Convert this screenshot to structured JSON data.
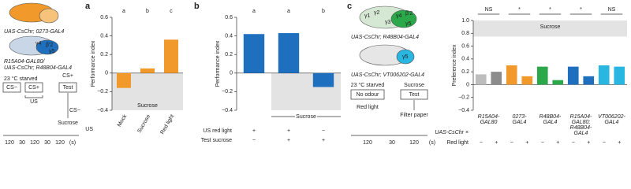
{
  "diagrams": {
    "a": {
      "genotype_1": "UAS-CsChr; 0273-GAL4",
      "genotype_2": [
        "R15A04-GAL80/",
        "UAS-CsChr; R48B04-GAL4"
      ],
      "glomeruli_2": [
        "γ4",
        "β′2",
        "γ5"
      ],
      "protocol": {
        "condition": "23 °C starved",
        "steps": [
          "CS−",
          "CS+",
          "Test"
        ],
        "test_above": "CS+",
        "us": "US",
        "test_below": "CS−",
        "reward": "Sucrose"
      },
      "timeline": [
        "120",
        "30",
        "120",
        "30",
        "120",
        "(s)"
      ]
    },
    "c": {
      "genotype_1": "UAS-CsChr; R48B04-GAL4",
      "glomeruli_1": [
        "γ1",
        "γ2",
        "γ3",
        "γ4",
        "β′2",
        "γ5"
      ],
      "genotype_2": "UAS-CsChr; VT006202-GAL4",
      "glomeruli_2": [
        "γ5"
      ],
      "protocol": {
        "condition": "23 °C starved",
        "steps": [
          "No odour",
          "Test"
        ],
        "stimulus": "Red light",
        "reward": "Sucrose",
        "substrate": "Filter paper"
      },
      "timeline": [
        "120",
        "30",
        "120",
        "(s)"
      ]
    }
  },
  "chart_data": [
    {
      "type": "bar",
      "panel_label": "a",
      "ylabel": "Performance index",
      "categories": [
        "Mock",
        "Sucrose",
        "Red light"
      ],
      "values": [
        -0.16,
        0.05,
        0.36
      ],
      "color": "#f19a2b",
      "annotations": [
        "a",
        "b",
        "c"
      ],
      "shade_label": "Sucrose",
      "row_label": "US",
      "ylim": [
        -0.4,
        0.6
      ],
      "yticks": [
        {
          "value": -0.4,
          "label": "−0.4"
        },
        {
          "value": -0.2,
          "label": "−0.2"
        },
        0,
        0.2,
        0.4,
        0.6
      ]
    },
    {
      "type": "bar",
      "panel_label": "b",
      "ylabel": "Performance index",
      "values": [
        0.42,
        0.43,
        -0.15
      ],
      "color": "#1f6fbf",
      "annotations": [
        "a",
        "a",
        "b"
      ],
      "shade_label": "Sucrose",
      "rows": [
        {
          "label": "US red light",
          "marks": [
            "+",
            "+",
            "−"
          ]
        },
        {
          "label": "Test sucrose",
          "marks": [
            "−",
            "+",
            "+"
          ]
        }
      ],
      "ylim": [
        -0.4,
        0.6
      ],
      "yticks": [
        {
          "value": -0.4,
          "label": "−0.4"
        },
        {
          "value": -0.2,
          "label": "−0.2"
        },
        0,
        0.2,
        0.4,
        0.6
      ]
    },
    {
      "type": "bar",
      "panel_label": "c",
      "ylabel": "Preference index",
      "values": [
        0.16,
        0.2,
        0.3,
        0.13,
        0.28,
        0.07,
        0.28,
        0.13,
        0.3,
        0.28
      ],
      "colors": [
        "#bdbdbd",
        "#8c8c8c",
        "#f19a2b",
        "#f19a2b",
        "#2aa84a",
        "#2aa84a",
        "#1f6fbf",
        "#1f6fbf",
        "#29b6e0",
        "#29b6e0"
      ],
      "groups": [
        {
          "label": [
            "R15A04-",
            "GAL80"
          ],
          "significance": "NS"
        },
        {
          "label": [
            "0273-",
            "GAL4"
          ],
          "significance": "*"
        },
        {
          "label": [
            "R48B04-",
            "GAL4"
          ],
          "significance": "*"
        },
        {
          "label": [
            "R15A04-",
            "GAL80;",
            "R48B04-",
            "GAL4"
          ],
          "significance": "*"
        },
        {
          "label": [
            "VT006202-",
            "GAL4"
          ],
          "significance": "NS"
        }
      ],
      "prefix": "UAS-CsChr ×",
      "shade_label": "Sucrose",
      "rows": [
        {
          "label": "Red light",
          "marks": [
            "−",
            "+",
            "−",
            "+",
            "−",
            "+",
            "−",
            "+",
            "−",
            "+"
          ]
        }
      ],
      "ylim": [
        -0.4,
        1.0
      ],
      "yticks": [
        {
          "value": -0.4,
          "label": "−0.4"
        },
        {
          "value": -0.2,
          "label": "−0.2"
        },
        0,
        0.2,
        0.4,
        0.6,
        0.8,
        {
          "value": 1,
          "label": "1.0"
        }
      ]
    }
  ]
}
